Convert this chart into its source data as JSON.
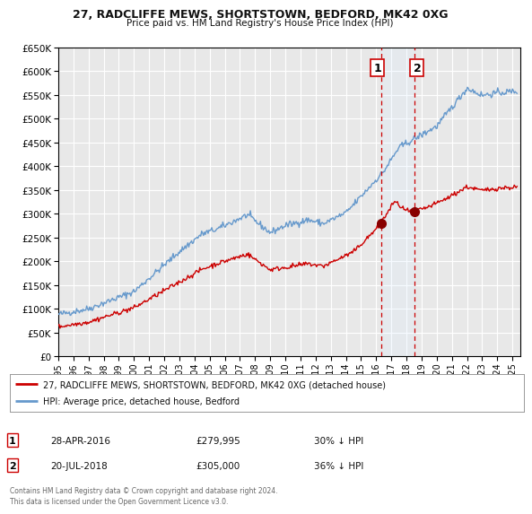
{
  "title": "27, RADCLIFFE MEWS, SHORTSTOWN, BEDFORD, MK42 0XG",
  "subtitle": "Price paid vs. HM Land Registry's House Price Index (HPI)",
  "legend_label_red": "27, RADCLIFFE MEWS, SHORTSTOWN, BEDFORD, MK42 0XG (detached house)",
  "legend_label_blue": "HPI: Average price, detached house, Bedford",
  "footer": "Contains HM Land Registry data © Crown copyright and database right 2024.\nThis data is licensed under the Open Government Licence v3.0.",
  "sale1_date": "28-APR-2016",
  "sale1_price": "£279,995",
  "sale1_hpi": "30% ↓ HPI",
  "sale1_year": 2016.32,
  "sale1_value": 279995,
  "sale2_date": "20-JUL-2018",
  "sale2_price": "£305,000",
  "sale2_hpi": "36% ↓ HPI",
  "sale2_year": 2018.55,
  "sale2_value": 305000,
  "xlim": [
    1995,
    2025.5
  ],
  "ylim": [
    0,
    650000
  ],
  "yticks": [
    0,
    50000,
    100000,
    150000,
    200000,
    250000,
    300000,
    350000,
    400000,
    450000,
    500000,
    550000,
    600000,
    650000
  ],
  "background_color": "#e8e8e8",
  "grid_color": "#ffffff",
  "red_line_color": "#cc0000",
  "blue_line_color": "#6699cc",
  "vline_color": "#cc0000",
  "shade_color": "#ddeeff"
}
